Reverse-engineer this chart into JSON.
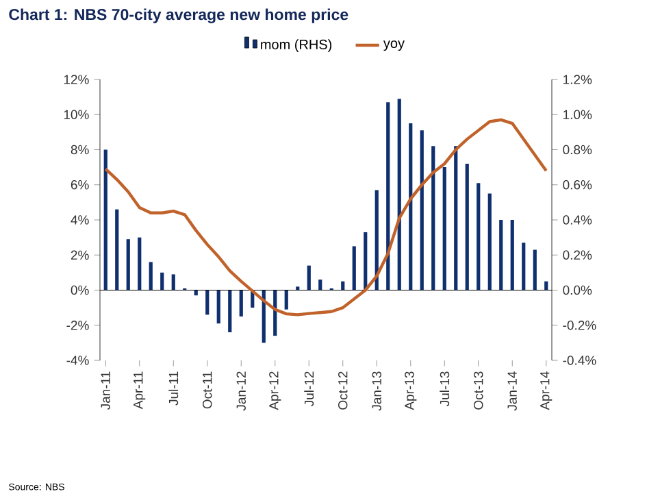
{
  "chart_data": {
    "type": "bar",
    "title": "Chart 1: NBS 70-city average new home price",
    "annotations": [
      "Source: NBS"
    ],
    "categories": [
      "Jan-11",
      null,
      null,
      "Apr-11",
      null,
      null,
      "Jul-11",
      null,
      null,
      "Oct-11",
      null,
      null,
      "Jan-12",
      null,
      null,
      "Apr-12",
      null,
      null,
      "Jul-12",
      null,
      null,
      "Oct-12",
      null,
      null,
      "Jan-13",
      null,
      null,
      "Apr-13",
      null,
      null,
      "Jul-13",
      null,
      null,
      "Oct-13",
      null,
      null,
      "Jan-14",
      null,
      null,
      "Apr-14"
    ],
    "series": [
      {
        "name": "mom (RHS)",
        "axis": "y2",
        "color": "#0f2f6e",
        "values": [
          0.8,
          0.46,
          0.29,
          0.3,
          0.16,
          0.1,
          0.09,
          0.01,
          -0.03,
          -0.14,
          -0.19,
          -0.24,
          -0.15,
          -0.1,
          -0.3,
          -0.26,
          -0.11,
          0.02,
          0.14,
          0.06,
          0.01,
          0.05,
          0.25,
          0.33,
          0.57,
          1.07,
          1.09,
          0.95,
          0.91,
          0.82,
          0.7,
          0.82,
          0.72,
          0.61,
          0.55,
          0.4,
          0.4,
          0.27,
          0.23,
          0.05
        ]
      },
      {
        "name": "yoy",
        "type": "line",
        "color": "#c0622a",
        "values": [
          6.9,
          6.3,
          5.6,
          4.7,
          4.4,
          4.4,
          4.5,
          4.3,
          3.4,
          2.6,
          1.9,
          1.1,
          0.5,
          -0.05,
          -0.6,
          -1.1,
          -1.35,
          -1.4,
          -1.33,
          -1.28,
          -1.22,
          -1.0,
          -0.5,
          0.0,
          0.8,
          2.1,
          4.1,
          5.2,
          6.0,
          6.7,
          7.2,
          8.0,
          8.6,
          9.1,
          9.6,
          9.7,
          9.5,
          8.6,
          7.7,
          6.8
        ]
      }
    ],
    "ylim": [
      -4,
      12
    ],
    "yticks": [
      {
        "value": -4,
        "label": "-4%"
      },
      {
        "value": -2,
        "label": "-2%"
      },
      {
        "value": 0,
        "label": "0%"
      },
      {
        "value": 2,
        "label": "2%"
      },
      {
        "value": 4,
        "label": "4%"
      },
      {
        "value": 6,
        "label": "6%"
      },
      {
        "value": 8,
        "label": "8%"
      },
      {
        "value": 10,
        "label": "10%"
      },
      {
        "value": 12,
        "label": "12%"
      }
    ],
    "y2lim": [
      -0.4,
      1.2
    ],
    "y2ticks": [
      {
        "value": -0.4,
        "label": "-0.4%"
      },
      {
        "value": -0.2,
        "label": "-0.2%"
      },
      {
        "value": 0.0,
        "label": "0.0%"
      },
      {
        "value": 0.2,
        "label": "0.2%"
      },
      {
        "value": 0.4,
        "label": "0.4%"
      },
      {
        "value": 0.6,
        "label": "0.6%"
      },
      {
        "value": 0.8,
        "label": "0.8%"
      },
      {
        "value": 1.0,
        "label": "1.0%"
      },
      {
        "value": 1.2,
        "label": "1.2%"
      }
    ],
    "legend": "top"
  }
}
